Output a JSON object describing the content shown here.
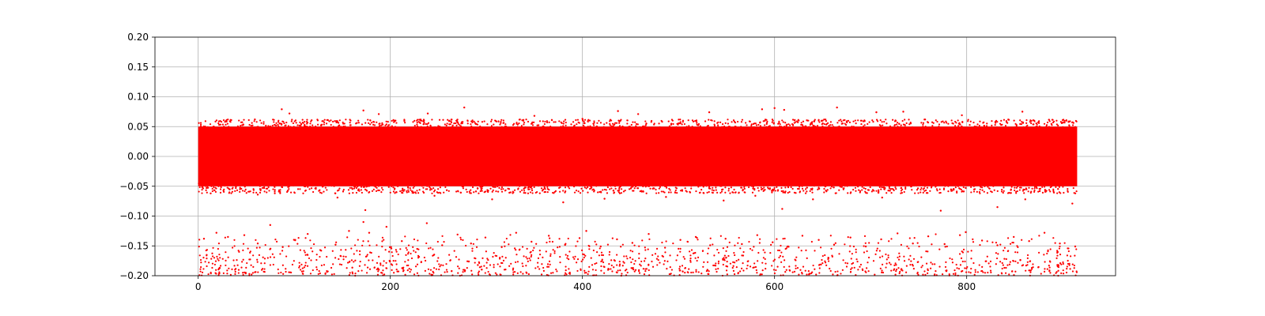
{
  "chart_data": {
    "type": "scatter",
    "title": "",
    "xlabel": "",
    "ylabel": "",
    "xlim": [
      -45,
      955
    ],
    "ylim": [
      -0.2,
      0.2
    ],
    "x_ticks": [
      0,
      200,
      400,
      600,
      800
    ],
    "x_tick_labels": [
      "0",
      "200",
      "400",
      "600",
      "800"
    ],
    "y_ticks": [
      -0.2,
      -0.15,
      -0.1,
      -0.05,
      0.0,
      0.05,
      0.1,
      0.15,
      0.2
    ],
    "y_tick_labels": [
      "−0.20",
      "−0.15",
      "−0.10",
      "−0.05",
      "0.00",
      "0.05",
      "0.10",
      "0.15",
      "0.20"
    ],
    "grid": true,
    "legend": "none",
    "marker_color": "#ff0000",
    "series": [
      {
        "x_range": [
          0,
          915
        ],
        "dense_band_y": [
          -0.05,
          0.05
        ],
        "outlier_band_y": [
          -0.2,
          -0.13
        ],
        "values": [
          [
            6,
            -0.138
          ],
          [
            19,
            -0.128
          ],
          [
            31,
            -0.135
          ],
          [
            48,
            -0.132
          ],
          [
            62,
            -0.146
          ],
          [
            75,
            -0.115
          ],
          [
            88,
            -0.152
          ],
          [
            101,
            -0.14
          ],
          [
            114,
            -0.13
          ],
          [
            128,
            -0.158
          ],
          [
            143,
            -0.148
          ],
          [
            157,
            -0.125
          ],
          [
            172,
            -0.11
          ],
          [
            178,
            -0.128
          ],
          [
            196,
            -0.118
          ],
          [
            212,
            -0.142
          ],
          [
            228,
            -0.155
          ],
          [
            238,
            -0.112
          ],
          [
            254,
            -0.149
          ],
          [
            270,
            -0.131
          ],
          [
            284,
            -0.146
          ],
          [
            299,
            -0.136
          ],
          [
            316,
            -0.152
          ],
          [
            331,
            -0.128
          ],
          [
            347,
            -0.143
          ],
          [
            365,
            -0.133
          ],
          [
            382,
            -0.148
          ],
          [
            397,
            -0.137
          ],
          [
            404,
            -0.125
          ],
          [
            419,
            -0.151
          ],
          [
            436,
            -0.139
          ],
          [
            452,
            -0.145
          ],
          [
            469,
            -0.13
          ],
          [
            486,
            -0.153
          ],
          [
            502,
            -0.14
          ],
          [
            518,
            -0.135
          ],
          [
            533,
            -0.149
          ],
          [
            549,
            -0.138
          ],
          [
            566,
            -0.147
          ],
          [
            582,
            -0.132
          ],
          [
            598,
            -0.144
          ],
          [
            614,
            -0.151
          ],
          [
            629,
            -0.133
          ],
          [
            646,
            -0.14
          ],
          [
            662,
            -0.148
          ],
          [
            679,
            -0.136
          ],
          [
            695,
            -0.151
          ],
          [
            711,
            -0.139
          ],
          [
            728,
            -0.129
          ],
          [
            744,
            -0.146
          ],
          [
            760,
            -0.134
          ],
          [
            777,
            -0.147
          ],
          [
            793,
            -0.132
          ],
          [
            799,
            -0.127
          ],
          [
            816,
            -0.141
          ],
          [
            832,
            -0.149
          ],
          [
            849,
            -0.135
          ],
          [
            865,
            -0.142
          ],
          [
            881,
            -0.128
          ],
          [
            897,
            -0.146
          ],
          [
            913,
            -0.151
          ],
          [
            28,
            0.058
          ],
          [
            59,
            0.062
          ],
          [
            87,
            0.079
          ],
          [
            95,
            0.072
          ],
          [
            135,
            0.061
          ],
          [
            172,
            0.077
          ],
          [
            188,
            0.071
          ],
          [
            239,
            0.072
          ],
          [
            277,
            0.082
          ],
          [
            350,
            0.068
          ],
          [
            400,
            0.063
          ],
          [
            437,
            0.076
          ],
          [
            458,
            0.071
          ],
          [
            532,
            0.074
          ],
          [
            587,
            0.079
          ],
          [
            600,
            0.081
          ],
          [
            610,
            0.078
          ],
          [
            665,
            0.082
          ],
          [
            706,
            0.074
          ],
          [
            734,
            0.075
          ],
          [
            795,
            0.069
          ],
          [
            858,
            0.075
          ],
          [
            900,
            0.061
          ],
          [
            13,
            -0.062
          ],
          [
            62,
            -0.064
          ],
          [
            145,
            -0.069
          ],
          [
            174,
            -0.09
          ],
          [
            246,
            -0.066
          ],
          [
            306,
            -0.072
          ],
          [
            380,
            -0.077
          ],
          [
            423,
            -0.071
          ],
          [
            487,
            -0.068
          ],
          [
            547,
            -0.074
          ],
          [
            580,
            -0.066
          ],
          [
            608,
            -0.088
          ],
          [
            640,
            -0.072
          ],
          [
            712,
            -0.069
          ],
          [
            773,
            -0.091
          ],
          [
            832,
            -0.085
          ],
          [
            861,
            -0.072
          ],
          [
            910,
            -0.079
          ]
        ]
      }
    ]
  }
}
